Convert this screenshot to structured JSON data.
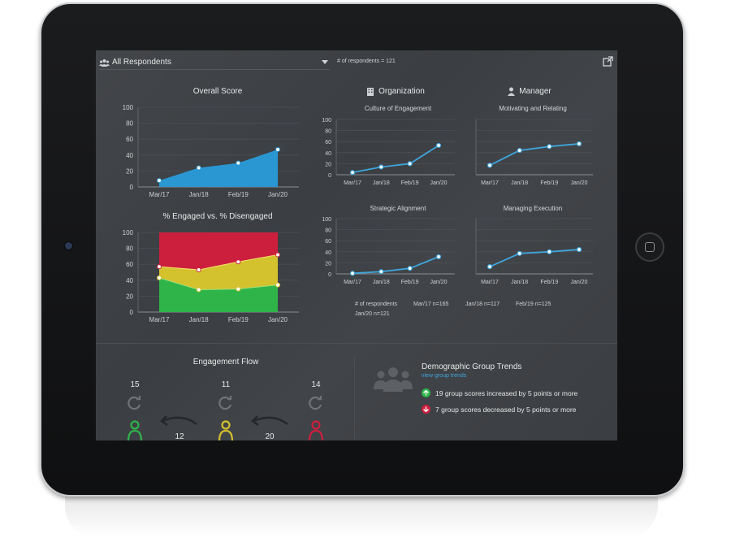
{
  "topbar": {
    "respondents_label": "All Respondents",
    "respondent_count": "# of respondents = 121"
  },
  "overall": {
    "title": "Overall Score",
    "chart_data": {
      "type": "area",
      "title": "Overall Score",
      "categories": [
        "Mar/17",
        "Jan/18",
        "Feb/19",
        "Jan/20"
      ],
      "x": [
        0,
        1,
        2,
        3
      ],
      "values": [
        8,
        24,
        30,
        47
      ],
      "ylim": [
        0,
        100
      ],
      "yticks": [
        0,
        20,
        40,
        60,
        80,
        100
      ],
      "color": "#2a97d2"
    }
  },
  "engaged": {
    "title": "% Engaged vs. % Disengaged",
    "chart_data": {
      "type": "area",
      "title": "% Engaged vs. % Disengaged",
      "categories": [
        "Mar/17",
        "Jan/18",
        "Feb/19",
        "Jan/20"
      ],
      "series": [
        {
          "values": [
            43,
            28,
            29,
            34
          ],
          "color": "#2fb44a"
        },
        {
          "values": [
            57,
            53,
            63,
            72
          ],
          "color": "#d4c12e"
        },
        {
          "values": [
            100,
            100,
            100,
            100
          ],
          "color": "#cc1f3e"
        }
      ],
      "ylim": [
        0,
        100
      ],
      "yticks": [
        0,
        20,
        40,
        60,
        80,
        100
      ]
    }
  },
  "organization": {
    "title": "Organization",
    "culture": {
      "title": "Culture of Engagement",
      "chart_data": {
        "type": "line",
        "title": "Culture of Engagement",
        "categories": [
          "Mar/17",
          "Jan/18",
          "Feb/19",
          "Jan/20"
        ],
        "values": [
          4,
          14,
          20,
          53
        ],
        "ylim": [
          0,
          100
        ],
        "yticks": [
          0,
          20,
          40,
          60,
          80,
          100
        ]
      }
    },
    "strategic": {
      "title": "Strategic Alignment",
      "chart_data": {
        "type": "line",
        "title": "Strategic Alignment",
        "categories": [
          "Mar/17",
          "Jan/18",
          "Feb/19",
          "Jan/20"
        ],
        "values": [
          1,
          4,
          10,
          31
        ],
        "ylim": [
          0,
          100
        ],
        "yticks": [
          0,
          20,
          40,
          60,
          80,
          100
        ]
      }
    }
  },
  "manager": {
    "title": "Manager",
    "motivating": {
      "title": "Motivating and Relating",
      "chart_data": {
        "type": "line",
        "title": "Motivating and Relating",
        "categories": [
          "Mar/17",
          "Jan/18",
          "Feb/19",
          "Jan/20"
        ],
        "values": [
          17,
          44,
          51,
          56
        ],
        "ylim": [
          0,
          100
        ]
      }
    },
    "execution": {
      "title": "Managing Execution",
      "chart_data": {
        "type": "line",
        "title": "Managing Execution",
        "categories": [
          "Mar/17",
          "Jan/18",
          "Feb/19",
          "Jan/20"
        ],
        "values": [
          13,
          37,
          40,
          44
        ],
        "ylim": [
          0,
          100
        ]
      }
    }
  },
  "respondents_legend": {
    "label": "# of respondents",
    "items": [
      "Mar/17  n=165",
      "Jan/18  n=117",
      "Feb/19  n=125",
      "Jan/20  n=121"
    ]
  },
  "flow": {
    "title": "Engagement Flow",
    "counts": [
      "15",
      "11",
      "14"
    ],
    "transitions": [
      "12",
      "20"
    ],
    "colors": [
      "#2fb44a",
      "#d4c12e",
      "#cc1f3e"
    ]
  },
  "demographic": {
    "title": "Demographic Group Trends",
    "link": "view group trends",
    "increased": "19 group scores increased by 5 points or more",
    "decreased": "7 group scores decreased by 5 points or more",
    "up_color": "#2fb44a",
    "down_color": "#cc1f3e"
  }
}
